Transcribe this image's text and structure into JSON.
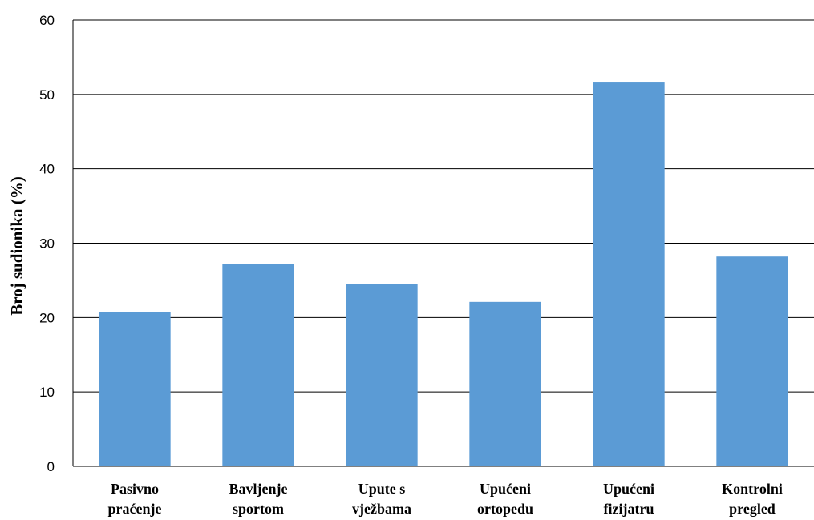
{
  "chart_data": {
    "type": "bar",
    "title": "",
    "xlabel": "",
    "ylabel": "Broj sudionika (%)",
    "ylim": [
      0,
      60
    ],
    "yticks": [
      0,
      10,
      20,
      30,
      40,
      50,
      60
    ],
    "grid": true,
    "legend": "none",
    "bar_color": "#5B9BD5",
    "categories": [
      [
        "Pasivno",
        "praćenje"
      ],
      [
        "Bavljenje",
        "sportom"
      ],
      [
        "Upute s",
        "vježbama"
      ],
      [
        "Upućeni",
        "ortopedu"
      ],
      [
        "Upućeni",
        "fizijatru"
      ],
      [
        "Kontrolni",
        "pregled"
      ]
    ],
    "values": [
      20.7,
      27.2,
      24.5,
      22.1,
      51.7,
      28.2
    ]
  }
}
